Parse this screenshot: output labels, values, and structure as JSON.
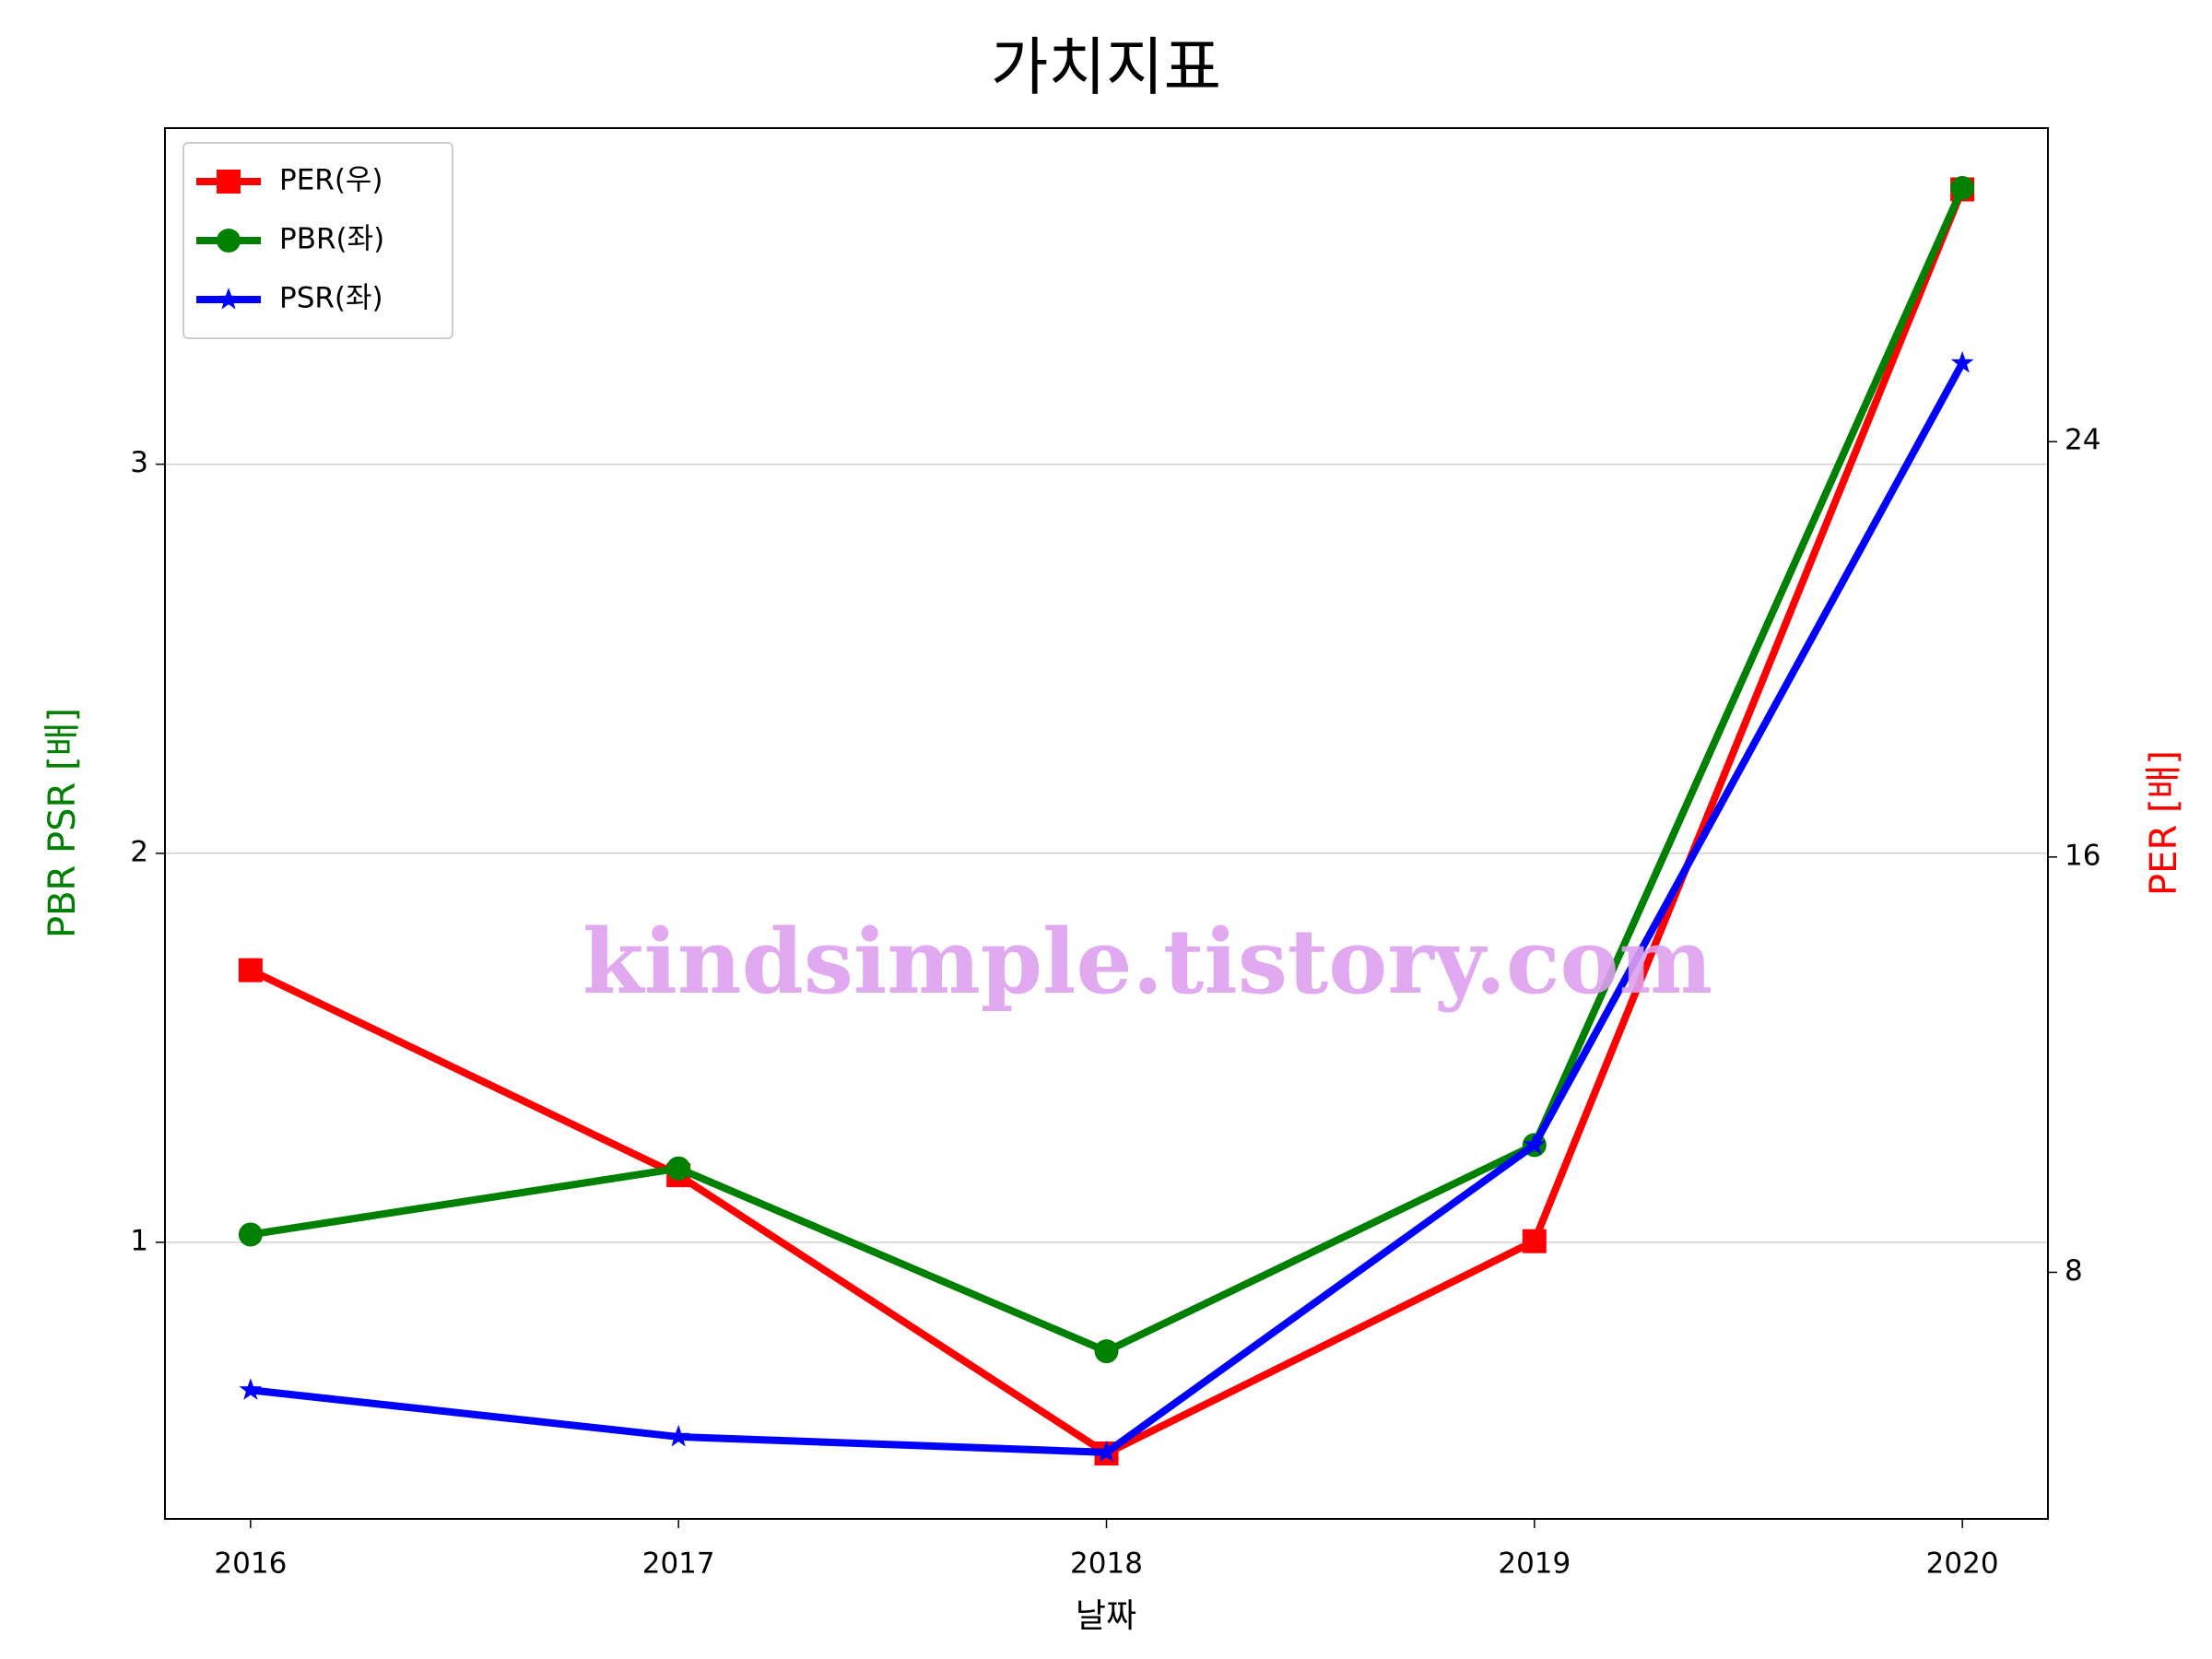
{
  "chart_data": {
    "type": "line",
    "title": "가치지표",
    "x_label": "날짜",
    "y_label": "PBR PSR [배]",
    "y2_label": "PER [배]",
    "watermark": "kindsimple.tistory.com",
    "x": [
      2016,
      2017,
      2018,
      2019,
      2020
    ],
    "xlim": [
      2015.8,
      2020.2
    ],
    "xticks": [
      2016,
      2017,
      2018,
      2019,
      2020
    ],
    "ylim": [
      0.289,
      3.864
    ],
    "yticks": [
      1,
      2,
      3
    ],
    "y2lim": [
      3.25,
      30.04
    ],
    "y2ticks": [
      8,
      16,
      24
    ],
    "grid": true,
    "legend": "upper left",
    "series": [
      {
        "name": "PER(우)",
        "color": "#ff0000",
        "marker": "square",
        "axis": "y2",
        "values": [
          13.82,
          9.87,
          4.51,
          8.6,
          28.86
        ]
      },
      {
        "name": "PBR(좌)",
        "color": "#008000",
        "marker": "circle",
        "values": [
          1.02,
          1.19,
          0.72,
          1.25,
          3.71
        ]
      },
      {
        "name": "PSR(좌)",
        "color": "#0000ff",
        "marker": "star",
        "values": [
          0.62,
          0.5,
          0.46,
          1.25,
          3.26
        ]
      }
    ]
  }
}
